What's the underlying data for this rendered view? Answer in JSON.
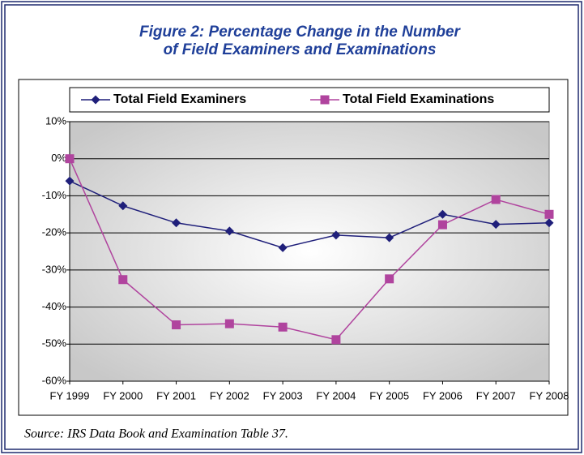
{
  "chart_data": {
    "type": "line",
    "title": [
      "Figure 2:  Percentage Change in the Number",
      "of Field Examiners and Examinations"
    ],
    "categories": [
      "FY 1999",
      "FY 2000",
      "FY 2001",
      "FY 2002",
      "FY 2003",
      "FY 2004",
      "FY 2005",
      "FY 2006",
      "FY 2007",
      "FY 2008"
    ],
    "series": [
      {
        "name": "Total Field Examiners",
        "color": "#1f1f7a",
        "marker": "diamond",
        "values": [
          -6,
          -12.7,
          -17.3,
          -19.5,
          -24,
          -20.6,
          -21.3,
          -15,
          -17.7,
          -17.3
        ]
      },
      {
        "name": "Total Field Examinations",
        "color": "#b0449e",
        "marker": "square",
        "values": [
          0,
          -32.6,
          -44.8,
          -44.5,
          -45.4,
          -48.8,
          -32.4,
          -17.8,
          -11,
          -15
        ]
      }
    ],
    "ylim": [
      -60,
      10
    ],
    "yticks": [
      {
        "value": 10,
        "label": "10%"
      },
      {
        "value": 0,
        "label": "0%"
      },
      {
        "value": -10,
        "label": "-10%"
      },
      {
        "value": -20,
        "label": "-20%"
      },
      {
        "value": -30,
        "label": "-30%"
      },
      {
        "value": -40,
        "label": "-40%"
      },
      {
        "value": -50,
        "label": "-50%"
      },
      {
        "value": -60,
        "label": "-60%"
      }
    ],
    "grid": true,
    "legend": "top",
    "source": "Source:  IRS Data Book and Examination Table 37."
  }
}
